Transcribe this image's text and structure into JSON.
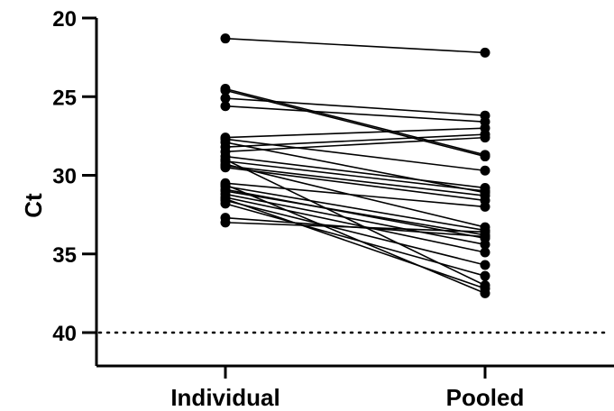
{
  "chart_data": {
    "type": "line",
    "title": "",
    "xlabel": "",
    "ylabel": "Ct",
    "categories": [
      "Individual",
      "Pooled"
    ],
    "y_axis": {
      "min": 20,
      "max": 42,
      "reversed": true,
      "ticks": [
        20,
        25,
        30,
        35,
        40
      ]
    },
    "reference_line": {
      "y": 40,
      "style": "dotted"
    },
    "grid": false,
    "legend": "none",
    "pairs": [
      [
        21.3,
        22.2
      ],
      [
        24.5,
        28.7
      ],
      [
        24.6,
        28.8
      ],
      [
        25.1,
        26.2
      ],
      [
        25.6,
        26.6
      ],
      [
        27.6,
        27.0
      ],
      [
        27.7,
        29.7
      ],
      [
        27.9,
        31.1
      ],
      [
        28.2,
        27.4
      ],
      [
        28.5,
        27.6
      ],
      [
        28.8,
        30.8
      ],
      [
        29.1,
        31.0
      ],
      [
        29.3,
        33.3
      ],
      [
        29.4,
        31.3
      ],
      [
        29.5,
        31.6
      ],
      [
        30.5,
        32.0
      ],
      [
        30.7,
        33.5
      ],
      [
        30.9,
        34.0
      ],
      [
        31.0,
        33.8
      ],
      [
        31.2,
        34.4
      ],
      [
        31.4,
        34.9
      ],
      [
        31.6,
        35.7
      ],
      [
        31.8,
        36.4
      ],
      [
        32.7,
        33.9
      ],
      [
        33.0,
        33.6
      ],
      [
        29.0,
        37.0
      ],
      [
        31.5,
        37.2
      ],
      [
        30.6,
        37.5
      ]
    ]
  }
}
